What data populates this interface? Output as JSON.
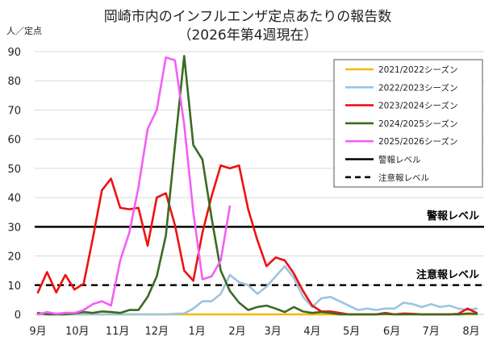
{
  "chart_data": {
    "type": "line",
    "title_line1": "岡崎市内のインフルエンザ定点あたりの報告数",
    "title_line2": "（2026年第4週現在）",
    "ylabel": "人／定点",
    "ylim": [
      0,
      90
    ],
    "yticks": [
      0,
      10,
      20,
      30,
      40,
      50,
      60,
      70,
      80,
      90
    ],
    "week_count": 49,
    "month_ticks": [
      {
        "label": "9月",
        "week": 0
      },
      {
        "label": "10月",
        "week": 4.3
      },
      {
        "label": "11月",
        "week": 8.7
      },
      {
        "label": "12月",
        "week": 13
      },
      {
        "label": "1月",
        "week": 17.4
      },
      {
        "label": "2月",
        "week": 21.8
      },
      {
        "label": "3月",
        "week": 25.7
      },
      {
        "label": "4月",
        "week": 30
      },
      {
        "label": "5月",
        "week": 34.3
      },
      {
        "label": "6月",
        "week": 38.7
      },
      {
        "label": "7月",
        "week": 43
      },
      {
        "label": "8月",
        "week": 47.4
      }
    ],
    "series": [
      {
        "name": "2021/2022シーズン",
        "color": "#f5b800",
        "dash": "solid",
        "values": [
          0,
          0,
          0,
          0,
          0,
          0,
          0,
          0,
          0,
          0,
          0,
          0,
          0,
          0,
          0,
          0,
          0,
          0,
          0,
          0,
          0,
          0,
          0,
          0,
          0,
          0,
          0,
          0,
          0,
          0,
          0,
          0,
          0,
          0,
          0,
          0,
          0,
          0,
          0,
          0,
          0,
          0,
          0,
          0,
          0,
          0,
          0,
          0,
          0
        ]
      },
      {
        "name": "2022/2023シーズン",
        "color": "#9dc3e0",
        "dash": "solid",
        "values": [
          0,
          0,
          0,
          0,
          0,
          0,
          0,
          0,
          0,
          0,
          0,
          0,
          0,
          0,
          0,
          0.2,
          0.3,
          2.0,
          4.5,
          4.5,
          7.0,
          13.5,
          11.0,
          10.0,
          7.0,
          9.5,
          13.0,
          16.5,
          12.5,
          6.0,
          2.5,
          5.5,
          6.0,
          4.5,
          3.0,
          1.5,
          2.0,
          1.5,
          2.0,
          2.0,
          4.0,
          3.5,
          2.5,
          3.5,
          2.5,
          3.0,
          2.0,
          1.5,
          2.0
        ]
      },
      {
        "name": "2023/2024シーズン",
        "color": "#ee1111",
        "dash": "solid",
        "values": [
          7.5,
          14.5,
          7.5,
          13.5,
          8.5,
          10.5,
          26.0,
          42.5,
          46.5,
          36.5,
          36.0,
          36.5,
          23.5,
          40.0,
          41.5,
          30.5,
          15.0,
          11.5,
          28.0,
          40.5,
          51.0,
          50.0,
          51.0,
          36.0,
          25.5,
          16.5,
          19.5,
          18.5,
          14.0,
          8.0,
          3.0,
          1.0,
          1.0,
          0.5,
          0,
          0,
          0,
          0,
          0.5,
          0,
          0.3,
          0.2,
          0,
          0,
          0,
          0,
          0.2,
          2.0,
          0.5
        ]
      },
      {
        "name": "2024/2025シーズン",
        "color": "#3a6b23",
        "dash": "solid",
        "values": [
          0.5,
          0,
          0,
          0,
          0.3,
          0.8,
          0.5,
          1.0,
          0.8,
          0.5,
          1.5,
          1.5,
          6.0,
          13.0,
          27.0,
          58.0,
          88.5,
          58.0,
          53.0,
          33.0,
          15.0,
          8.0,
          4.0,
          1.5,
          2.5,
          3.0,
          2.0,
          0.8,
          2.5,
          1.0,
          0.5,
          0.8,
          0.5,
          0,
          0,
          0,
          0,
          0,
          0.2,
          0,
          0,
          0,
          0,
          0,
          0,
          0,
          0,
          0.3,
          0.2
        ]
      },
      {
        "name": "2025/2026シーズン",
        "color": "#f55ef5",
        "dash": "solid",
        "values": [
          0,
          0.8,
          0.2,
          0.5,
          0.5,
          1.5,
          3.5,
          4.5,
          3.0,
          18.5,
          28.0,
          43.5,
          63.5,
          70.0,
          88.0,
          87.0,
          65.0,
          35.0,
          12.0,
          13.0,
          18.5,
          37.0
        ]
      },
      {
        "name": "警報レベル",
        "color": "#000000",
        "dash": "solid",
        "level": 30
      },
      {
        "name": "注意報レベル",
        "color": "#000000",
        "dash": "dashed",
        "level": 10
      }
    ],
    "annotations": {
      "alarm_label": "警報レベル",
      "advisory_label": "注意報レベル"
    }
  }
}
